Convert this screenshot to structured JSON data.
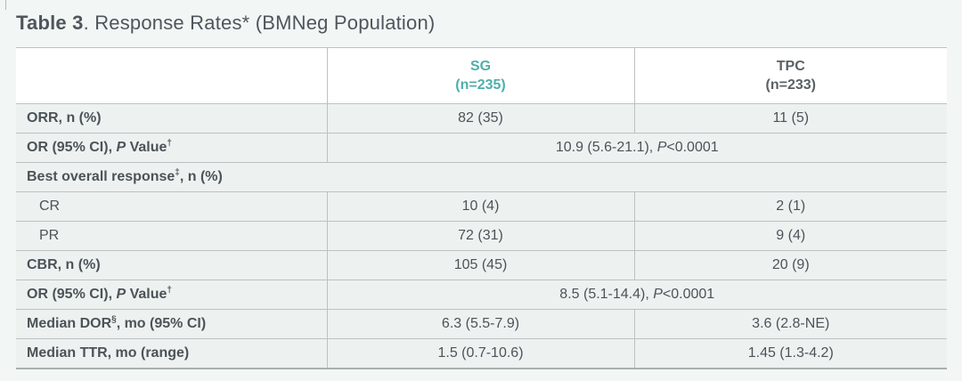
{
  "title": {
    "bold": "Table 3",
    "rest": ". Response Rates* (BMNeg Population)"
  },
  "colors": {
    "accent_teal": "#4fafab",
    "body_text": "#4c5358",
    "title_text": "#4e565c",
    "page_bg": "#f2f6f5",
    "row_bg": "#edf2f1",
    "header_bg": "#ffffff",
    "border": "#bcc1c1",
    "border_bottom": "#a9afaf"
  },
  "table": {
    "columns": [
      {
        "name": "SG",
        "n_label": "(n=235)"
      },
      {
        "name": "TPC",
        "n_label": "(n=233)"
      }
    ],
    "rows": [
      {
        "kind": "data",
        "bold": true,
        "indent": false,
        "label": [
          {
            "t": "ORR, n (%)"
          }
        ],
        "cells": [
          [
            {
              "t": "82 (35)"
            }
          ],
          [
            {
              "t": "11 (5)"
            }
          ]
        ]
      },
      {
        "kind": "span",
        "bold": true,
        "label": [
          {
            "t": "OR (95% CI), "
          },
          {
            "t": "P",
            "i": true
          },
          {
            "t": " Value"
          },
          {
            "t": "†",
            "s": true
          }
        ],
        "cells": [
          [
            {
              "t": "10.9 (5.6-21.1), "
            },
            {
              "t": "P",
              "i": true
            },
            {
              "t": "<0.0001"
            }
          ]
        ]
      },
      {
        "kind": "section",
        "bold": true,
        "label": [
          {
            "t": "Best overall response"
          },
          {
            "t": "‡",
            "s": true
          },
          {
            "t": ", n (%)"
          }
        ]
      },
      {
        "kind": "data",
        "bold": false,
        "indent": true,
        "label": [
          {
            "t": "CR"
          }
        ],
        "cells": [
          [
            {
              "t": "10 (4)"
            }
          ],
          [
            {
              "t": "2 (1)"
            }
          ]
        ]
      },
      {
        "kind": "data",
        "bold": false,
        "indent": true,
        "label": [
          {
            "t": "PR"
          }
        ],
        "cells": [
          [
            {
              "t": "72 (31)"
            }
          ],
          [
            {
              "t": "9 (4)"
            }
          ]
        ]
      },
      {
        "kind": "data",
        "bold": true,
        "indent": false,
        "label": [
          {
            "t": "CBR, n (%)"
          }
        ],
        "cells": [
          [
            {
              "t": "105 (45)"
            }
          ],
          [
            {
              "t": "20 (9)"
            }
          ]
        ]
      },
      {
        "kind": "span",
        "bold": true,
        "label": [
          {
            "t": "OR (95% CI), "
          },
          {
            "t": "P",
            "i": true
          },
          {
            "t": " Value"
          },
          {
            "t": "†",
            "s": true
          }
        ],
        "cells": [
          [
            {
              "t": "8.5 (5.1-14.4), "
            },
            {
              "t": "P",
              "i": true
            },
            {
              "t": "<0.0001"
            }
          ]
        ]
      },
      {
        "kind": "data",
        "bold": true,
        "indent": false,
        "label": [
          {
            "t": "Median DOR"
          },
          {
            "t": "§",
            "s": true
          },
          {
            "t": ", mo (95% CI)"
          }
        ],
        "cells": [
          [
            {
              "t": "6.3 (5.5-7.9)"
            }
          ],
          [
            {
              "t": "3.6 (2.8-NE)"
            }
          ]
        ]
      },
      {
        "kind": "data",
        "bold": true,
        "indent": false,
        "label": [
          {
            "t": "Median TTR, mo (range)"
          }
        ],
        "cells": [
          [
            {
              "t": "1.5 (0.7-10.6)"
            }
          ],
          [
            {
              "t": "1.45 (1.3-4.2)"
            }
          ]
        ]
      }
    ]
  }
}
